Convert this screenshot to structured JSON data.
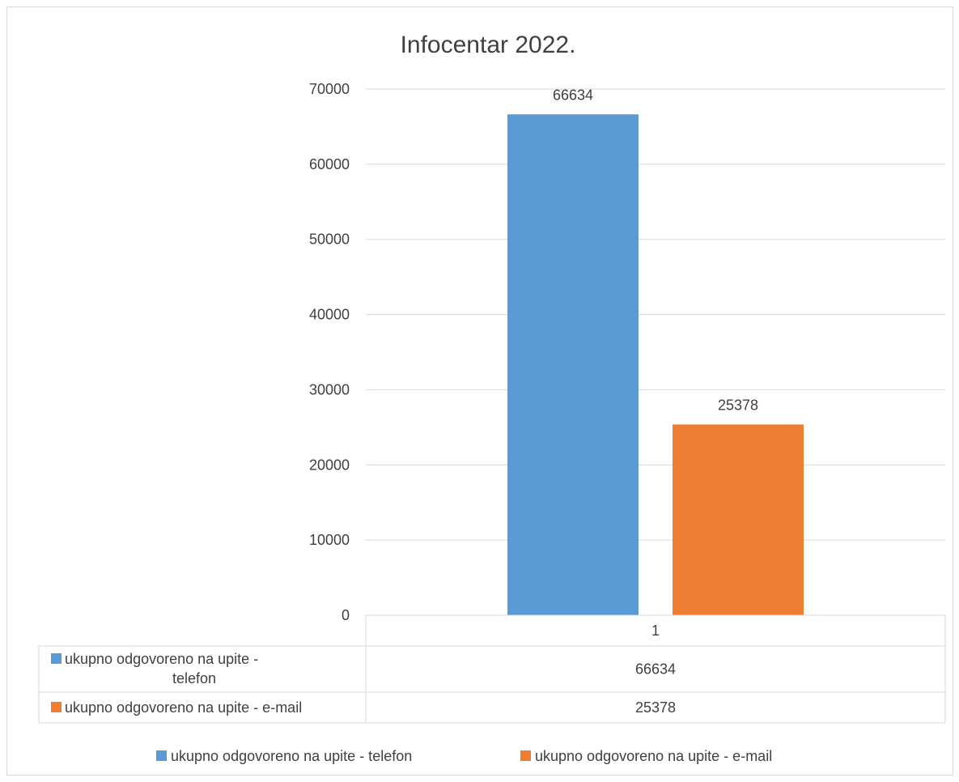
{
  "chart_data": {
    "type": "bar",
    "title": "Infocentar 2022.",
    "categories": [
      "1"
    ],
    "series": [
      {
        "name": "ukupno odgovoreno na upite - telefon",
        "values": [
          66634
        ],
        "color": "#5b9bd5"
      },
      {
        "name": "ukupno odgovoreno na upite - e-mail",
        "values": [
          25378
        ],
        "color": "#ed7d31"
      }
    ],
    "ylim": [
      0,
      70000
    ],
    "yticks": [
      0,
      10000,
      20000,
      30000,
      40000,
      50000,
      60000,
      70000
    ],
    "grid": true,
    "legend": "bottom",
    "data_table": {
      "rows": [
        {
          "label_lines": [
            "ukupno odgovoreno na upite -",
            "telefon"
          ],
          "value": "66634"
        },
        {
          "label_lines": [
            "ukupno odgovoreno na upite - e-mail"
          ],
          "value": "25378"
        }
      ]
    }
  }
}
